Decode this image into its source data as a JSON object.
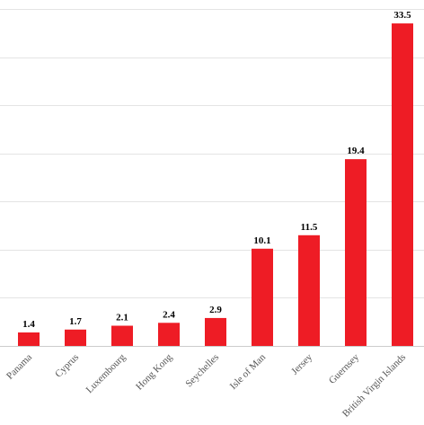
{
  "chart_data": {
    "type": "bar",
    "title": "",
    "xlabel": "",
    "ylabel": "",
    "categories": [
      "Panama",
      "Cyprus",
      "Luxembourg",
      "Hong Kong",
      "Seychelles",
      "Isle of Man",
      "Jersey",
      "Guernsey",
      "British Virgin Islands"
    ],
    "values": [
      1.4,
      1.7,
      2.1,
      2.4,
      2.9,
      10.1,
      11.5,
      19.4,
      33.5
    ],
    "value_labels": [
      "1.4",
      "1.7",
      "2.1",
      "2.4",
      "2.9",
      "10.1",
      "11.5",
      "19.4",
      "33.5"
    ],
    "ylim": [
      0,
      35
    ],
    "y_gridlines": [
      0,
      5,
      10,
      15,
      20,
      25,
      30,
      35
    ],
    "grid": true,
    "legend": "none",
    "bar_color": "#ee1c25"
  }
}
